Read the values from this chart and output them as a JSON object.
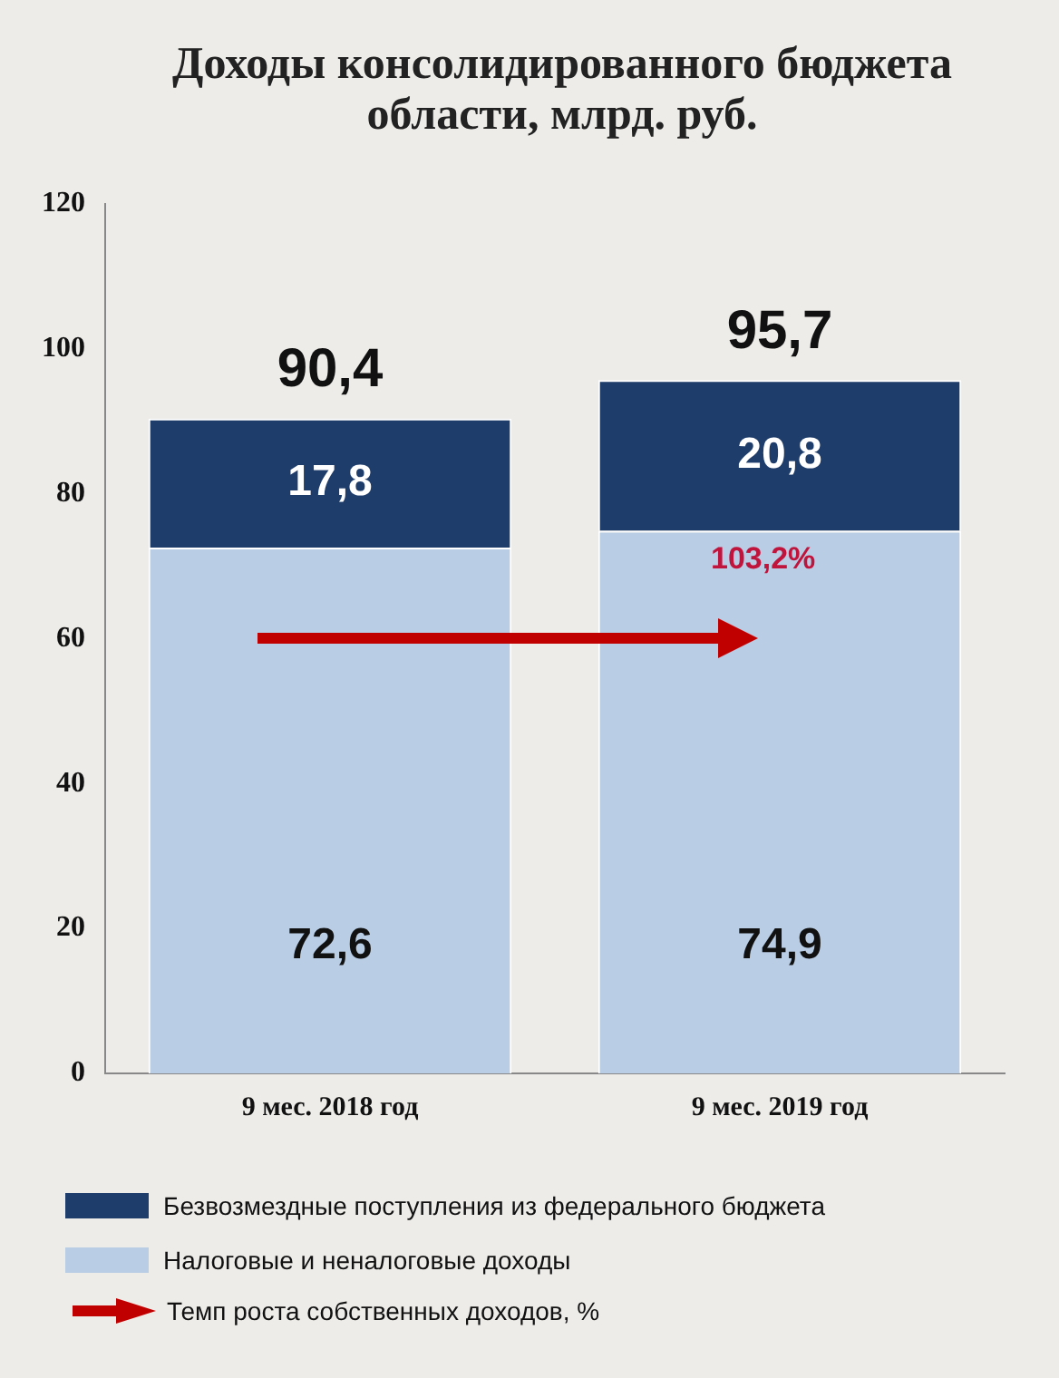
{
  "chart_data": {
    "type": "bar",
    "title": "Доходы консолидированного бюджета области, млрд. руб.",
    "categories": [
      "9 мес. 2018 год",
      "9 мес. 2019 год"
    ],
    "stacked": true,
    "series": [
      {
        "name": "Налоговые и неналоговые доходы",
        "color": "#b9cde5",
        "values": [
          72.6,
          74.9
        ],
        "value_labels": [
          "72,6",
          "74,9"
        ]
      },
      {
        "name": "Безвозмездные поступления из федерального бюджета",
        "color": "#1f3d6b",
        "values": [
          17.8,
          20.8
        ],
        "value_labels": [
          "17,8",
          "20,8"
        ]
      }
    ],
    "totals": [
      "90,4",
      "95,7"
    ],
    "ylim": [
      0,
      120
    ],
    "yticks": [
      0,
      20,
      40,
      60,
      80,
      100,
      120
    ],
    "grid": false,
    "legend": "bottom",
    "annotations": [
      "103,2%",
      "Темп роста собственных доходов, %"
    ]
  }
}
